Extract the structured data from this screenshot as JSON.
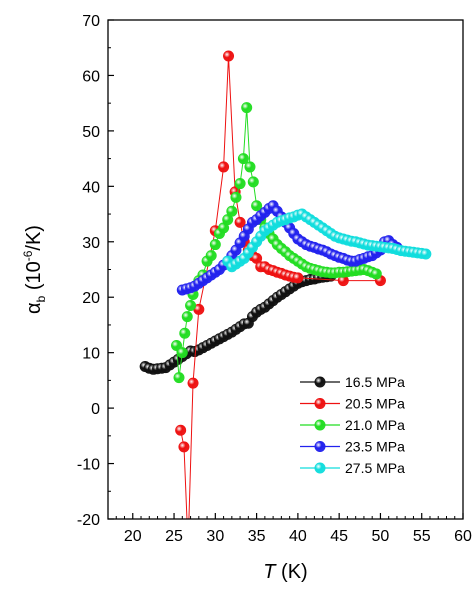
{
  "chart_data": {
    "type": "scatter",
    "xlabel": {
      "main": "T",
      "unit": " (K)"
    },
    "ylabel": {
      "main": "α",
      "sub": "b",
      "pre": " (10",
      "sup": "-6",
      "post": "/K)"
    },
    "xlim": [
      17,
      60
    ],
    "ylim": [
      -20,
      70
    ],
    "xticks": [
      20,
      25,
      30,
      35,
      40,
      45,
      50,
      55,
      60
    ],
    "yticks": [
      -20,
      -10,
      0,
      10,
      20,
      30,
      40,
      50,
      60,
      70
    ],
    "legend_position": "lower-right",
    "series": [
      {
        "name": "16.5 MPa",
        "color": "#111111",
        "points": [
          [
            21.5,
            7.5
          ],
          [
            22,
            7.2
          ],
          [
            22.5,
            7.0
          ],
          [
            23,
            7.1
          ],
          [
            23.5,
            7.2
          ],
          [
            24,
            7.3
          ],
          [
            24.5,
            7.8
          ],
          [
            25,
            8.3
          ],
          [
            25.5,
            8.8
          ],
          [
            26,
            9.3
          ],
          [
            26.5,
            9.8
          ],
          [
            27,
            10.3
          ],
          [
            27.5,
            10.2
          ],
          [
            28,
            10.5
          ],
          [
            28.5,
            10.9
          ],
          [
            29,
            11.3
          ],
          [
            29.5,
            11.7
          ],
          [
            30,
            12.1
          ],
          [
            30.5,
            12.5
          ],
          [
            31,
            12.9
          ],
          [
            31.5,
            13.3
          ],
          [
            32,
            13.7
          ],
          [
            32.5,
            14.2
          ],
          [
            33,
            14.7
          ],
          [
            33.5,
            15.2
          ],
          [
            34,
            15.3
          ],
          [
            34.5,
            16.5
          ],
          [
            35,
            17.3
          ],
          [
            35.5,
            17.8
          ],
          [
            36,
            18.2
          ],
          [
            36.5,
            18.8
          ],
          [
            37,
            19.4
          ],
          [
            37.5,
            20.0
          ],
          [
            38,
            20.5
          ],
          [
            38.5,
            21.0
          ],
          [
            39,
            21.5
          ],
          [
            39.5,
            22.0
          ],
          [
            40,
            22.5
          ],
          [
            40.5,
            22.8
          ],
          [
            41,
            23.0
          ],
          [
            41.5,
            23.2
          ],
          [
            42,
            23.3
          ],
          [
            42.5,
            23.5
          ],
          [
            43,
            23.6
          ],
          [
            43.5,
            23.7
          ],
          [
            44,
            23.8
          ]
        ]
      },
      {
        "name": "20.5 MPa",
        "color": "#ee1111",
        "points": [
          [
            25.8,
            -4.0
          ],
          [
            26.2,
            -7.0
          ],
          [
            26.7,
            -25
          ],
          [
            27.3,
            4.5
          ],
          [
            28,
            17.8
          ],
          [
            30,
            32
          ],
          [
            31,
            43.5
          ],
          [
            31.6,
            63.5
          ],
          [
            32.4,
            39
          ],
          [
            33,
            33.5
          ],
          [
            33.5,
            30
          ],
          [
            34,
            28.5
          ],
          [
            34.5,
            27.5
          ],
          [
            35,
            27
          ],
          [
            35.5,
            25.5
          ],
          [
            36,
            25.5
          ],
          [
            36.5,
            25.0
          ],
          [
            37,
            24.8
          ],
          [
            37.5,
            24.5
          ],
          [
            38,
            24.3
          ],
          [
            38.5,
            24.0
          ],
          [
            39,
            23.8
          ],
          [
            39.5,
            23.6
          ],
          [
            40,
            23.5
          ],
          [
            45.5,
            23.0
          ],
          [
            50,
            23.0
          ]
        ]
      },
      {
        "name": "21.0 MPa",
        "color": "#22dd22",
        "points": [
          [
            25.3,
            11.3
          ],
          [
            25.6,
            5.5
          ],
          [
            26,
            10
          ],
          [
            26.3,
            13.5
          ],
          [
            26.6,
            16.5
          ],
          [
            27,
            18.5
          ],
          [
            27.3,
            20.5
          ],
          [
            28,
            23
          ],
          [
            28.5,
            24
          ],
          [
            29,
            26.5
          ],
          [
            29.5,
            27.5
          ],
          [
            30,
            29.5
          ],
          [
            30.5,
            31.5
          ],
          [
            31,
            32.5
          ],
          [
            31.5,
            34
          ],
          [
            32,
            35.5
          ],
          [
            32.5,
            38
          ],
          [
            33,
            40.5
          ],
          [
            33.4,
            45
          ],
          [
            33.8,
            54.2
          ],
          [
            34.2,
            43.5
          ],
          [
            34.6,
            40.8
          ],
          [
            35,
            36.5
          ],
          [
            35.5,
            34
          ],
          [
            36,
            32.5
          ],
          [
            36.5,
            31.5
          ],
          [
            37,
            30.5
          ],
          [
            37.5,
            29.5
          ],
          [
            38,
            28.8
          ],
          [
            38.5,
            28.2
          ],
          [
            39,
            27.5
          ],
          [
            39.5,
            27
          ],
          [
            40,
            26.5
          ],
          [
            40.5,
            26
          ],
          [
            41,
            25.5
          ],
          [
            41.5,
            25.2
          ],
          [
            42,
            25
          ],
          [
            42.5,
            24.8
          ],
          [
            43,
            24.6
          ],
          [
            43.5,
            24.5
          ],
          [
            44,
            24.4
          ],
          [
            44.5,
            24.4
          ],
          [
            45,
            24.5
          ],
          [
            45.5,
            24.5
          ],
          [
            46,
            24.6
          ],
          [
            46.5,
            24.7
          ],
          [
            47,
            24.8
          ],
          [
            47.5,
            24.9
          ],
          [
            48,
            25
          ],
          [
            48.5,
            24.8
          ],
          [
            49,
            24.5
          ],
          [
            49.5,
            24.2
          ]
        ]
      },
      {
        "name": "23.5 MPa",
        "color": "#2222ee",
        "points": [
          [
            26,
            21.3
          ],
          [
            26.5,
            21.5
          ],
          [
            27,
            21.7
          ],
          [
            27.5,
            22
          ],
          [
            28,
            22.5
          ],
          [
            28.5,
            23
          ],
          [
            29,
            23.5
          ],
          [
            29.5,
            24
          ],
          [
            30,
            24.5
          ],
          [
            30.5,
            25
          ],
          [
            31,
            25.8
          ],
          [
            31.5,
            26.5
          ],
          [
            32,
            27.5
          ],
          [
            32.5,
            28.5
          ],
          [
            33,
            29.8
          ],
          [
            33.5,
            31
          ],
          [
            34,
            32.3
          ],
          [
            34.5,
            33.5
          ],
          [
            35,
            34
          ],
          [
            35.5,
            34.7
          ],
          [
            36,
            35.3
          ],
          [
            36.5,
            36
          ],
          [
            37,
            36.5
          ],
          [
            37.5,
            35.5
          ],
          [
            38,
            34.5
          ],
          [
            38.5,
            33.5
          ],
          [
            39,
            32.5
          ],
          [
            39.5,
            31.5
          ],
          [
            40,
            30.5
          ],
          [
            40.5,
            30
          ],
          [
            41,
            29.5
          ],
          [
            41.5,
            29.2
          ],
          [
            42,
            29
          ],
          [
            42.5,
            28.7
          ],
          [
            43,
            28.5
          ],
          [
            43.5,
            28.2
          ],
          [
            44,
            27.8
          ],
          [
            44.5,
            27.5
          ],
          [
            45,
            27.2
          ],
          [
            45.5,
            27
          ],
          [
            46,
            26.7
          ],
          [
            46.5,
            26.5
          ],
          [
            47,
            26.5
          ],
          [
            47.5,
            26.8
          ],
          [
            48,
            27
          ],
          [
            48.5,
            27.3
          ],
          [
            49,
            27.5
          ],
          [
            49.5,
            28
          ],
          [
            50,
            28.5
          ],
          [
            50.5,
            30
          ],
          [
            51,
            30.2
          ],
          [
            51.5,
            29.5
          ],
          [
            52,
            29
          ]
        ]
      },
      {
        "name": "27.5 MPa",
        "color": "#11dddd",
        "points": [
          [
            31.5,
            26.5
          ],
          [
            32,
            25.5
          ],
          [
            32.5,
            26
          ],
          [
            33,
            26.5
          ],
          [
            33.5,
            27
          ],
          [
            34,
            28
          ],
          [
            34.5,
            29
          ],
          [
            35,
            30
          ],
          [
            35.5,
            31
          ],
          [
            36,
            32
          ],
          [
            36.5,
            32.5
          ],
          [
            37,
            33
          ],
          [
            37.5,
            33.5
          ],
          [
            38,
            33.8
          ],
          [
            38.5,
            34
          ],
          [
            39,
            34.3
          ],
          [
            39.5,
            34.5
          ],
          [
            40,
            34.8
          ],
          [
            40.5,
            35
          ],
          [
            41,
            34.5
          ],
          [
            41.5,
            34
          ],
          [
            42,
            33.5
          ],
          [
            42.5,
            33
          ],
          [
            43,
            32.5
          ],
          [
            43.5,
            32
          ],
          [
            44,
            31.5
          ],
          [
            44.5,
            31
          ],
          [
            45,
            30.7
          ],
          [
            45.5,
            30.5
          ],
          [
            46,
            30.3
          ],
          [
            46.5,
            30.1
          ],
          [
            47,
            30
          ],
          [
            47.5,
            29.8
          ],
          [
            48,
            29.6
          ],
          [
            48.5,
            29.4
          ],
          [
            49,
            29.3
          ],
          [
            49.5,
            29.2
          ],
          [
            50,
            29.1
          ],
          [
            50.5,
            29
          ],
          [
            51,
            28.9
          ],
          [
            51.5,
            28.8
          ],
          [
            52,
            28.6
          ],
          [
            52.5,
            28.4
          ],
          [
            53,
            28.3
          ],
          [
            53.5,
            28.2
          ],
          [
            54,
            28.1
          ],
          [
            54.5,
            28
          ],
          [
            55,
            27.9
          ],
          [
            55.5,
            27.8
          ]
        ]
      }
    ]
  }
}
